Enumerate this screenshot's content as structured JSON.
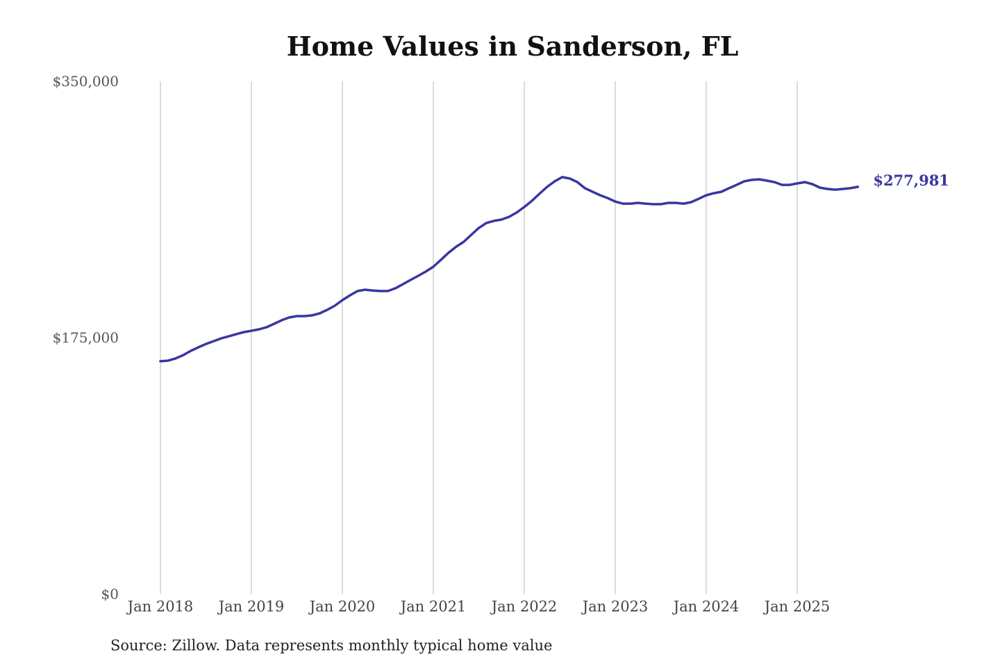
{
  "chart_data": {
    "type": "line",
    "title": "Home Values in Sanderson, FL",
    "source_note": "Source: Zillow. Data represents monthly typical home value",
    "xlabel": "",
    "ylabel": "",
    "ylim": [
      0,
      350000
    ],
    "y_ticks": [
      {
        "value": 0,
        "label": "$0"
      },
      {
        "value": 175000,
        "label": "$175,000"
      },
      {
        "value": 350000,
        "label": "$350,000"
      }
    ],
    "x_ticks": [
      "Jan 2018",
      "Jan 2019",
      "Jan 2020",
      "Jan 2021",
      "Jan 2022",
      "Jan 2023",
      "Jan 2024",
      "Jan 2025"
    ],
    "x_start": "2018-01",
    "x_end": "2025-09",
    "frequency": "monthly",
    "grid": "vertical",
    "line_color": "#3a36a0",
    "end_label": "$277,981",
    "values": [
      158900,
      159300,
      160800,
      163100,
      166000,
      168400,
      170700,
      172600,
      174500,
      175900,
      177400,
      178800,
      179700,
      180700,
      182100,
      184500,
      186900,
      188800,
      189700,
      189700,
      190200,
      191600,
      194000,
      196800,
      200600,
      203900,
      206800,
      207700,
      207200,
      206800,
      206800,
      208700,
      211500,
      214400,
      217200,
      220100,
      223400,
      228100,
      232900,
      237100,
      240400,
      245200,
      249900,
      253300,
      254700,
      255600,
      257500,
      260400,
      264200,
      268400,
      273200,
      277900,
      281700,
      284600,
      283600,
      281200,
      277000,
      274600,
      272200,
      270300,
      267900,
      266500,
      266500,
      267000,
      266500,
      266100,
      266100,
      267000,
      267000,
      266500,
      267500,
      269800,
      272200,
      273600,
      274600,
      277000,
      279300,
      281700,
      282700,
      283100,
      282200,
      281200,
      279300,
      279300,
      280300,
      281200,
      279800,
      277400,
      276500,
      276000,
      276500,
      277000,
      277981
    ]
  }
}
